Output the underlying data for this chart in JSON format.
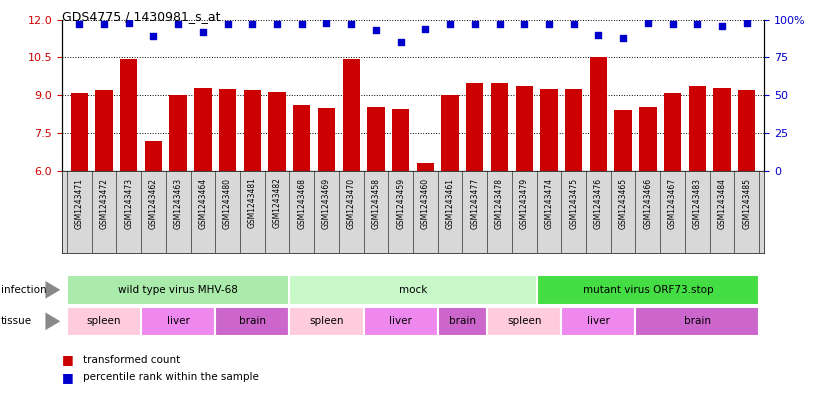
{
  "title": "GDS4775 / 1430981_s_at",
  "samples": [
    "GSM1243471",
    "GSM1243472",
    "GSM1243473",
    "GSM1243462",
    "GSM1243463",
    "GSM1243464",
    "GSM1243480",
    "GSM1243481",
    "GSM1243482",
    "GSM1243468",
    "GSM1243469",
    "GSM1243470",
    "GSM1243458",
    "GSM1243459",
    "GSM1243460",
    "GSM1243461",
    "GSM1243477",
    "GSM1243478",
    "GSM1243479",
    "GSM1243474",
    "GSM1243475",
    "GSM1243476",
    "GSM1243465",
    "GSM1243466",
    "GSM1243467",
    "GSM1243483",
    "GSM1243484",
    "GSM1243485"
  ],
  "bar_values": [
    9.1,
    9.2,
    10.45,
    7.2,
    9.0,
    9.3,
    9.25,
    9.2,
    9.15,
    8.6,
    8.5,
    10.45,
    8.55,
    8.45,
    6.3,
    9.0,
    9.5,
    9.5,
    9.35,
    9.25,
    9.25,
    10.5,
    8.4,
    8.55,
    9.1,
    9.35,
    9.3,
    9.2
  ],
  "percentile_values": [
    97,
    97,
    98,
    89,
    97,
    92,
    97,
    97,
    97,
    97,
    98,
    97,
    93,
    85,
    94,
    97,
    97,
    97,
    97,
    97,
    97,
    90,
    88,
    98,
    97,
    97,
    96,
    98
  ],
  "bar_color": "#cc0000",
  "dot_color": "#0000cc",
  "ylim_left": [
    6,
    12
  ],
  "ylim_right": [
    0,
    100
  ],
  "yticks_left": [
    6,
    7.5,
    9,
    10.5,
    12
  ],
  "yticks_right": [
    0,
    25,
    50,
    75,
    100
  ],
  "infection_groups": [
    {
      "label": "wild type virus MHV-68",
      "start": 0,
      "end": 9,
      "color": "#aaeaaa"
    },
    {
      "label": "mock",
      "start": 9,
      "end": 19,
      "color": "#c8f8c8"
    },
    {
      "label": "mutant virus ORF73.stop",
      "start": 19,
      "end": 28,
      "color": "#44dd44"
    }
  ],
  "tissue_groups": [
    {
      "label": "spleen",
      "start": 0,
      "end": 3,
      "color": "#ffccdd"
    },
    {
      "label": "liver",
      "start": 3,
      "end": 6,
      "color": "#ee88ee"
    },
    {
      "label": "brain",
      "start": 6,
      "end": 9,
      "color": "#cc66cc"
    },
    {
      "label": "spleen",
      "start": 9,
      "end": 12,
      "color": "#ffccdd"
    },
    {
      "label": "liver",
      "start": 12,
      "end": 15,
      "color": "#ee88ee"
    },
    {
      "label": "brain",
      "start": 15,
      "end": 17,
      "color": "#cc66cc"
    },
    {
      "label": "spleen",
      "start": 17,
      "end": 20,
      "color": "#ffccdd"
    },
    {
      "label": "liver",
      "start": 20,
      "end": 23,
      "color": "#ee88ee"
    },
    {
      "label": "brain",
      "start": 23,
      "end": 28,
      "color": "#cc66cc"
    }
  ],
  "legend_items": [
    {
      "label": "transformed count",
      "color": "#cc0000"
    },
    {
      "label": "percentile rank within the sample",
      "color": "#0000cc"
    }
  ],
  "background_color": "#ffffff",
  "tick_label_color_left": "#cc0000",
  "tick_label_color_right": "#0000cc",
  "xticklabel_bg": "#d8d8d8"
}
